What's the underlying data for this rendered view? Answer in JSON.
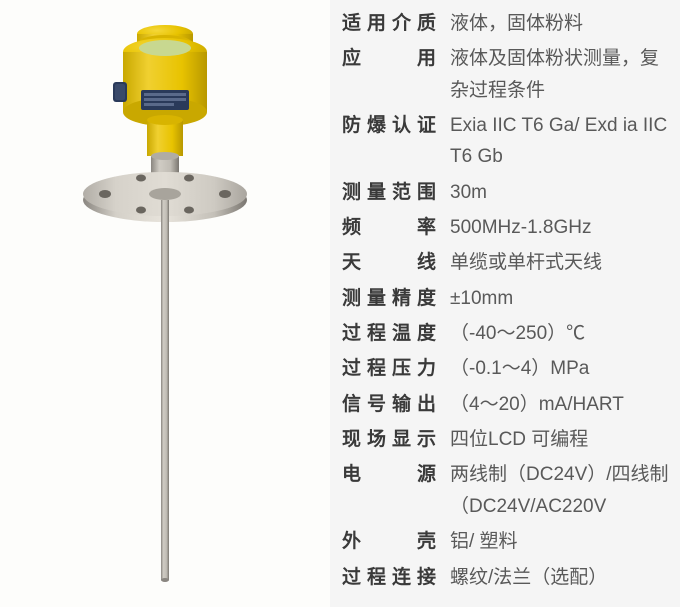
{
  "specs": [
    {
      "label": "适用介质",
      "value": "液体，固体粉料",
      "spaced": false
    },
    {
      "label": "应　　用",
      "value": "液体及固体粉状测量，复杂过程条件",
      "spaced": false
    },
    {
      "label": "防爆认证",
      "value": "Exia IIC T6 Ga/ Exd ia IIC T6 Gb",
      "spaced": false
    },
    {
      "label": "测量范围",
      "value": "30m",
      "spaced": false
    },
    {
      "label": "频　　率",
      "value": "500MHz-1.8GHz",
      "spaced": false
    },
    {
      "label": "天　　线",
      "value": "单缆或单杆式天线",
      "spaced": false
    },
    {
      "label": "测量精度",
      "value": "±10mm",
      "spaced": false
    },
    {
      "label": "过程温度",
      "value": "（-40～250）℃",
      "spaced": false
    },
    {
      "label": "过程压力",
      "value": "（-0.1～4）MPa",
      "spaced": false
    },
    {
      "label": "信号输出",
      "value": "（4～20）mA/HART",
      "spaced": false
    },
    {
      "label": "现场显示",
      "value": "四位LCD 可编程",
      "spaced": false
    },
    {
      "label": "电　　源",
      "value": "两线制（DC24V）/四线制（DC24V/AC220V",
      "spaced": false
    },
    {
      "label": "外　　壳",
      "value": "铝/ 塑料",
      "spaced": false
    },
    {
      "label": "过程连接",
      "value": "螺纹/法兰（选配）",
      "spaced": false
    }
  ],
  "colors": {
    "background": "#f5f5f5",
    "imagebg": "#fdfdfb",
    "label": "#3a3a3a",
    "value": "#595959",
    "sensorYellow": "#e8c300",
    "sensorYellowDark": "#c9a800",
    "sensorYellowLight": "#f5d83a",
    "flangeGray": "#b8b4ad",
    "flangeGrayDark": "#8a8680",
    "flangeGrayLight": "#d4d0c8",
    "rodGray": "#aba79f",
    "screenGreen": "#c8d890",
    "labelBlue": "#2a3a5a"
  }
}
